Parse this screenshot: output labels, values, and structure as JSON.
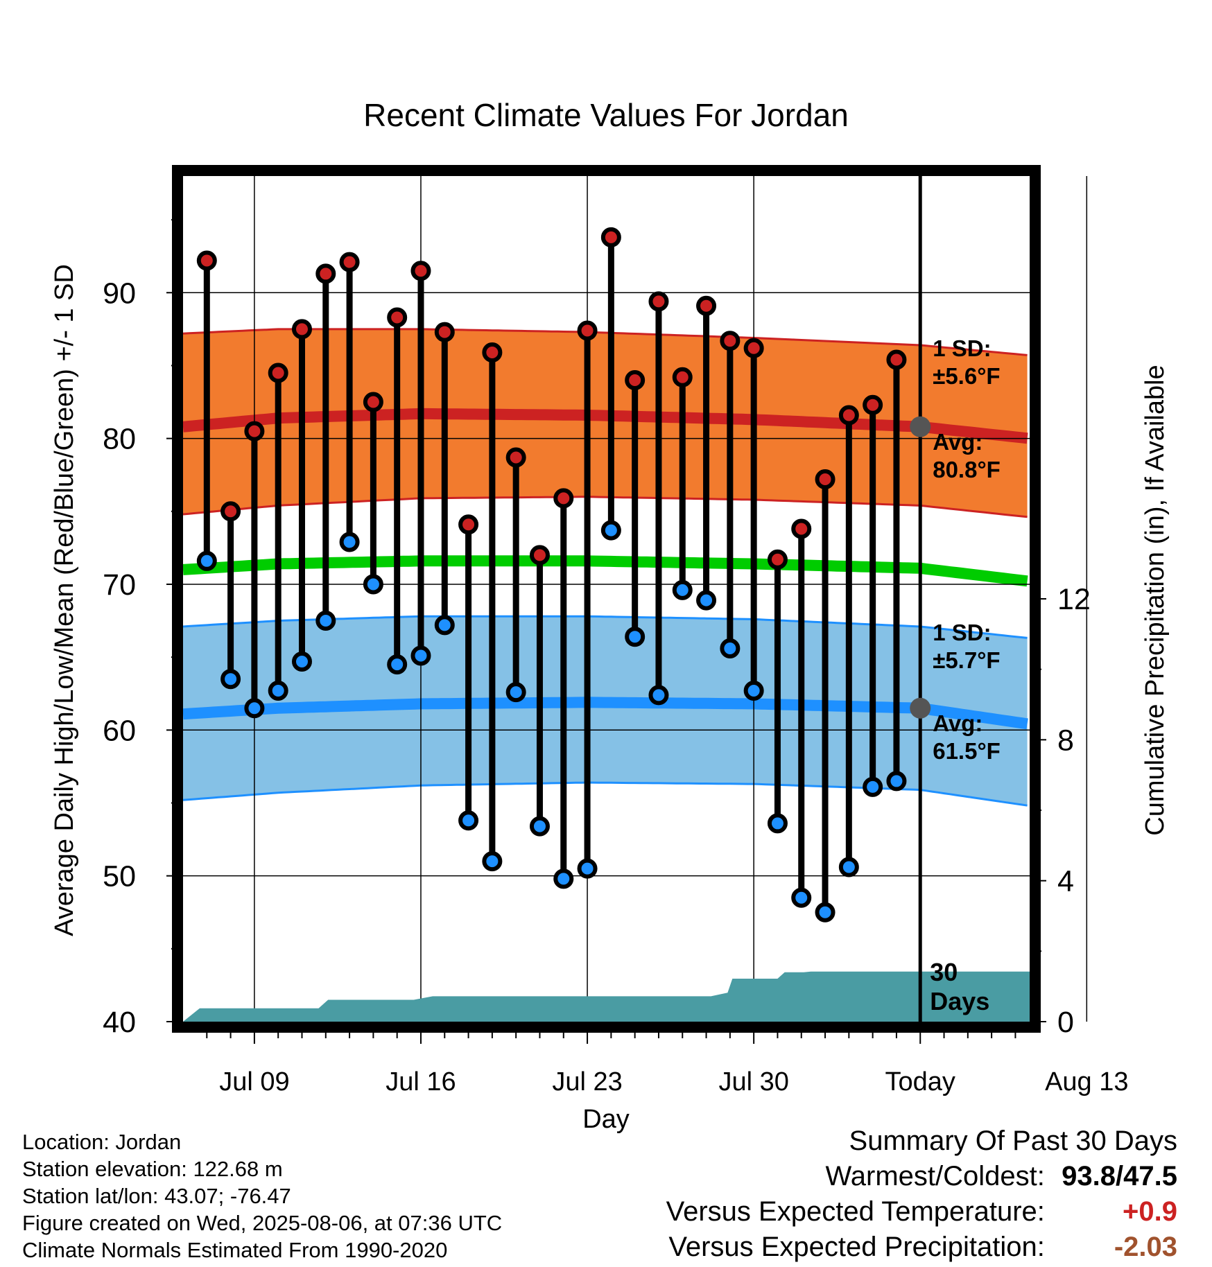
{
  "chart_data": {
    "type": "line",
    "title": "Recent Climate Values For Jordan",
    "xlabel": "Day",
    "ylabel": "Average Daily High/Low/Mean (Red/Blue/Green) +/- 1 SD",
    "y2label": "Cumulative Precipitation (in), If Available",
    "ylim": [
      40,
      98
    ],
    "y2lim": [
      0,
      24
    ],
    "xlim_days": [
      6,
      41.6
    ],
    "yticks": [
      40,
      50,
      60,
      70,
      80,
      90
    ],
    "y2ticks": [
      0,
      4,
      8,
      12
    ],
    "xtick_days": [
      9,
      16,
      23,
      30,
      37,
      44
    ],
    "xticks": [
      "Jul 09",
      "Jul 16",
      "Jul 23",
      "Jul 30",
      "Today",
      "Aug 13"
    ],
    "today_day": 37,
    "grid": true,
    "days": [
      7,
      8,
      9,
      10,
      11,
      12,
      13,
      14,
      15,
      16,
      17,
      18,
      19,
      20,
      21,
      22,
      23,
      24,
      25,
      26,
      27,
      28,
      29,
      30,
      31,
      32,
      33,
      34,
      35,
      36
    ],
    "series": [
      {
        "name": "High",
        "color": "#cc2222",
        "values": [
          92.2,
          75.0,
          80.5,
          84.5,
          87.5,
          91.3,
          92.1,
          82.5,
          88.3,
          91.5,
          87.3,
          74.1,
          85.9,
          78.7,
          72.0,
          75.9,
          87.4,
          93.8,
          84.0,
          89.4,
          84.2,
          89.1,
          86.7,
          86.2,
          71.7,
          73.8,
          77.2,
          81.6,
          82.3,
          85.4
        ]
      },
      {
        "name": "Low",
        "color": "#1e90ff",
        "values": [
          71.6,
          63.5,
          61.5,
          62.7,
          64.7,
          67.5,
          72.9,
          70.0,
          64.5,
          65.1,
          67.2,
          53.8,
          51.0,
          62.6,
          53.4,
          49.8,
          50.5,
          73.7,
          66.4,
          62.4,
          69.6,
          68.9,
          65.6,
          62.7,
          53.6,
          48.5,
          47.5,
          50.6,
          56.1,
          56.5
        ]
      }
    ],
    "normals": {
      "days": [
        6,
        10,
        16,
        23,
        30,
        37,
        41.6
      ],
      "high_avg": [
        80.8,
        81.4,
        81.7,
        81.6,
        81.3,
        80.8,
        80.0
      ],
      "high_upper": [
        87.2,
        87.5,
        87.5,
        87.3,
        86.9,
        86.4,
        85.7
      ],
      "high_lower": [
        74.8,
        75.4,
        75.9,
        76.0,
        75.8,
        75.4,
        74.6
      ],
      "mean": [
        71.0,
        71.4,
        71.6,
        71.6,
        71.4,
        71.1,
        70.2
      ],
      "low_avg": [
        61.1,
        61.5,
        61.8,
        61.9,
        61.8,
        61.5,
        60.4
      ],
      "low_upper": [
        67.1,
        67.5,
        67.8,
        67.8,
        67.6,
        67.1,
        66.3
      ],
      "low_lower": [
        55.2,
        55.7,
        56.2,
        56.4,
        56.3,
        55.9,
        54.8
      ]
    },
    "precip": {
      "days": [
        6,
        6.7,
        11.7,
        12.1,
        15.7,
        16.5,
        17.1,
        28.2,
        28.9,
        29.1,
        31,
        31.3,
        32.1,
        32.4,
        41.6
      ],
      "cumulative_in": [
        0,
        0.38,
        0.38,
        0.62,
        0.62,
        0.72,
        0.72,
        0.72,
        0.82,
        1.22,
        1.22,
        1.4,
        1.4,
        1.42,
        1.42
      ]
    },
    "high_annotation": {
      "sd_label": "1 SD:",
      "sd_value": "±5.6°F",
      "avg_label": "Avg:",
      "avg_value": "80.8°F"
    },
    "low_annotation": {
      "sd_label": "1 SD:",
      "sd_value": "±5.7°F",
      "avg_label": "Avg:",
      "avg_value": "61.5°F"
    },
    "precip_label_line1": "30",
    "precip_label_line2": "Days",
    "colors": {
      "high_band": "#f27b2e",
      "high_line": "#cc2222",
      "low_band": "#85c1e6",
      "low_line": "#1e90ff",
      "mean_line": "#00cc00",
      "precip_fill": "#4a9ca3",
      "annotation_text": "#555555"
    }
  },
  "footer": {
    "location": "Location: Jordan",
    "elevation": "Station elevation: 122.68 m",
    "latlon": "Station lat/lon: 43.07; -76.47",
    "created": "Figure created on Wed, 2025-08-06, at 07:36 UTC",
    "normals": "Climate Normals Estimated From 1990-2020"
  },
  "summary": {
    "title": "Summary Of Past 30 Days",
    "warm_cold_label": "Warmest/Coldest:",
    "warm_cold_value": "93.8/47.5",
    "temp_label": "Versus Expected Temperature:",
    "temp_value": "+0.9",
    "temp_color": "#cc2222",
    "precip_label": "Versus Expected Precipitation:",
    "precip_value": "-2.03",
    "precip_color": "#a0522d"
  }
}
